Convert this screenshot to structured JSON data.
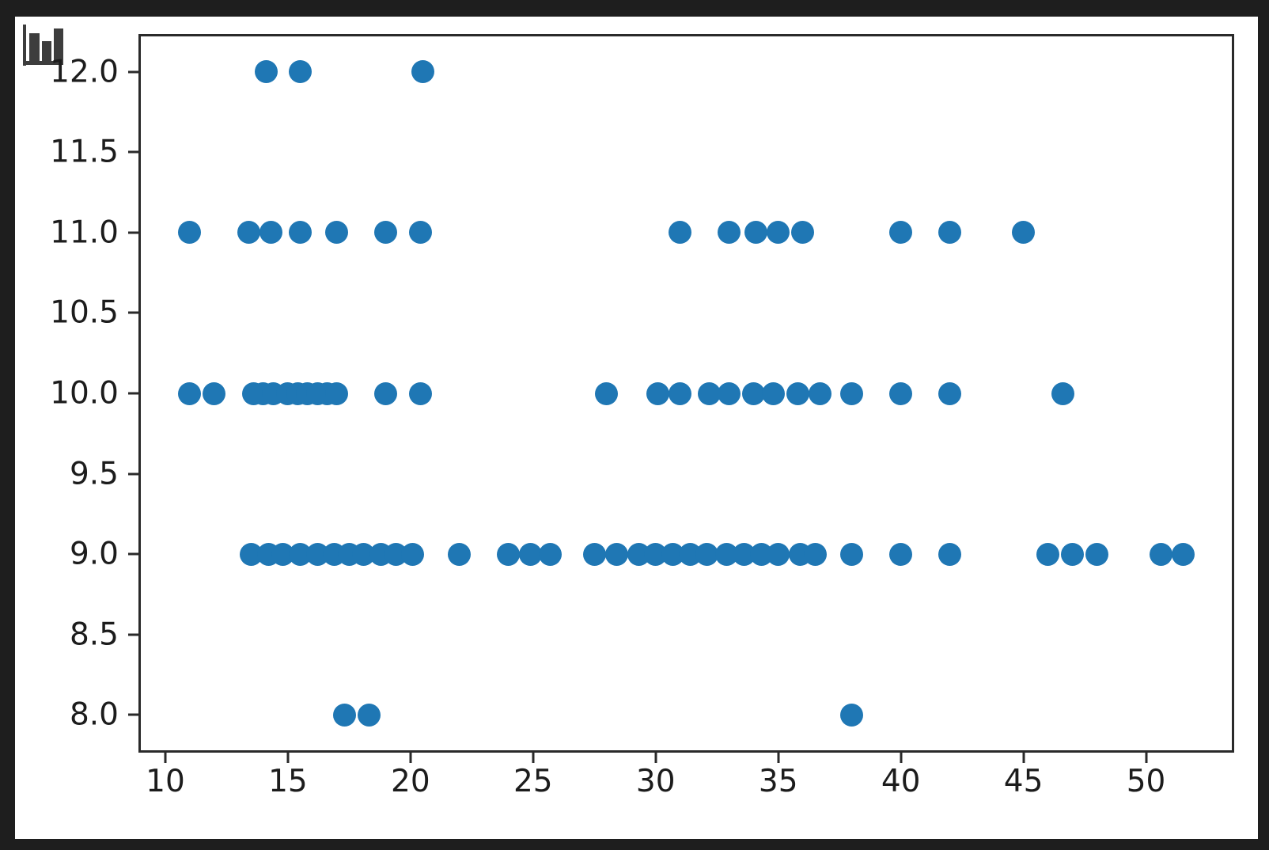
{
  "window": {
    "background_color": "#1e1e1e",
    "figure_background_color": "#ffffff"
  },
  "icon": {
    "name": "bar-chart-icon",
    "color": "#3d3d3d"
  },
  "axes_style": {
    "spine_color": "#2a2a2a",
    "tick_color": "#2a2a2a",
    "tick_label_color": "#1c1c1c"
  },
  "chart_data": {
    "type": "scatter",
    "title": "",
    "xlabel": "",
    "ylabel": "",
    "grid": false,
    "legend": null,
    "marker_color": "#1f77b4",
    "marker_diameter_px": 29,
    "xlim": [
      9.0,
      53.5
    ],
    "ylim": [
      7.78,
      12.22
    ],
    "x_ticks": [
      10,
      15,
      20,
      25,
      30,
      35,
      40,
      45,
      50
    ],
    "x_tick_labels": [
      "10",
      "15",
      "20",
      "25",
      "30",
      "35",
      "40",
      "45",
      "50"
    ],
    "y_ticks": [
      8.0,
      8.5,
      9.0,
      9.5,
      10.0,
      10.5,
      11.0,
      11.5,
      12.0
    ],
    "y_tick_labels": [
      "8.0",
      "8.5",
      "9.0",
      "9.5",
      "10.0",
      "10.5",
      "11.0",
      "11.5",
      "12.0"
    ],
    "rows": [
      {
        "y": 12,
        "x": [
          14.1,
          15.5,
          20.5
        ]
      },
      {
        "y": 11,
        "x": [
          11,
          13.4,
          14.3,
          15.5,
          17,
          19,
          20.4,
          31,
          33,
          34.1,
          35,
          36,
          40,
          42,
          45
        ]
      },
      {
        "y": 10,
        "x": [
          11,
          12,
          13.6,
          14,
          14.4,
          15,
          15.4,
          15.8,
          16.2,
          16.6,
          17,
          19,
          20.4,
          28,
          30.1,
          31,
          32.2,
          33,
          34,
          34.8,
          35.8,
          36.7,
          38,
          40,
          42,
          46.6
        ]
      },
      {
        "y": 9,
        "x": [
          13.5,
          14.2,
          14.8,
          15.5,
          16.2,
          16.9,
          17.5,
          18.1,
          18.8,
          19.4,
          20.1,
          22,
          24,
          24.9,
          25.7,
          27.5,
          28.4,
          29.3,
          30,
          30.7,
          31.4,
          32.1,
          32.9,
          33.6,
          34.3,
          35,
          35.9,
          36.5,
          38,
          40,
          42,
          46,
          47,
          48,
          50.6,
          51.5
        ]
      },
      {
        "y": 8,
        "x": [
          17.3,
          18.3,
          38
        ]
      }
    ]
  }
}
